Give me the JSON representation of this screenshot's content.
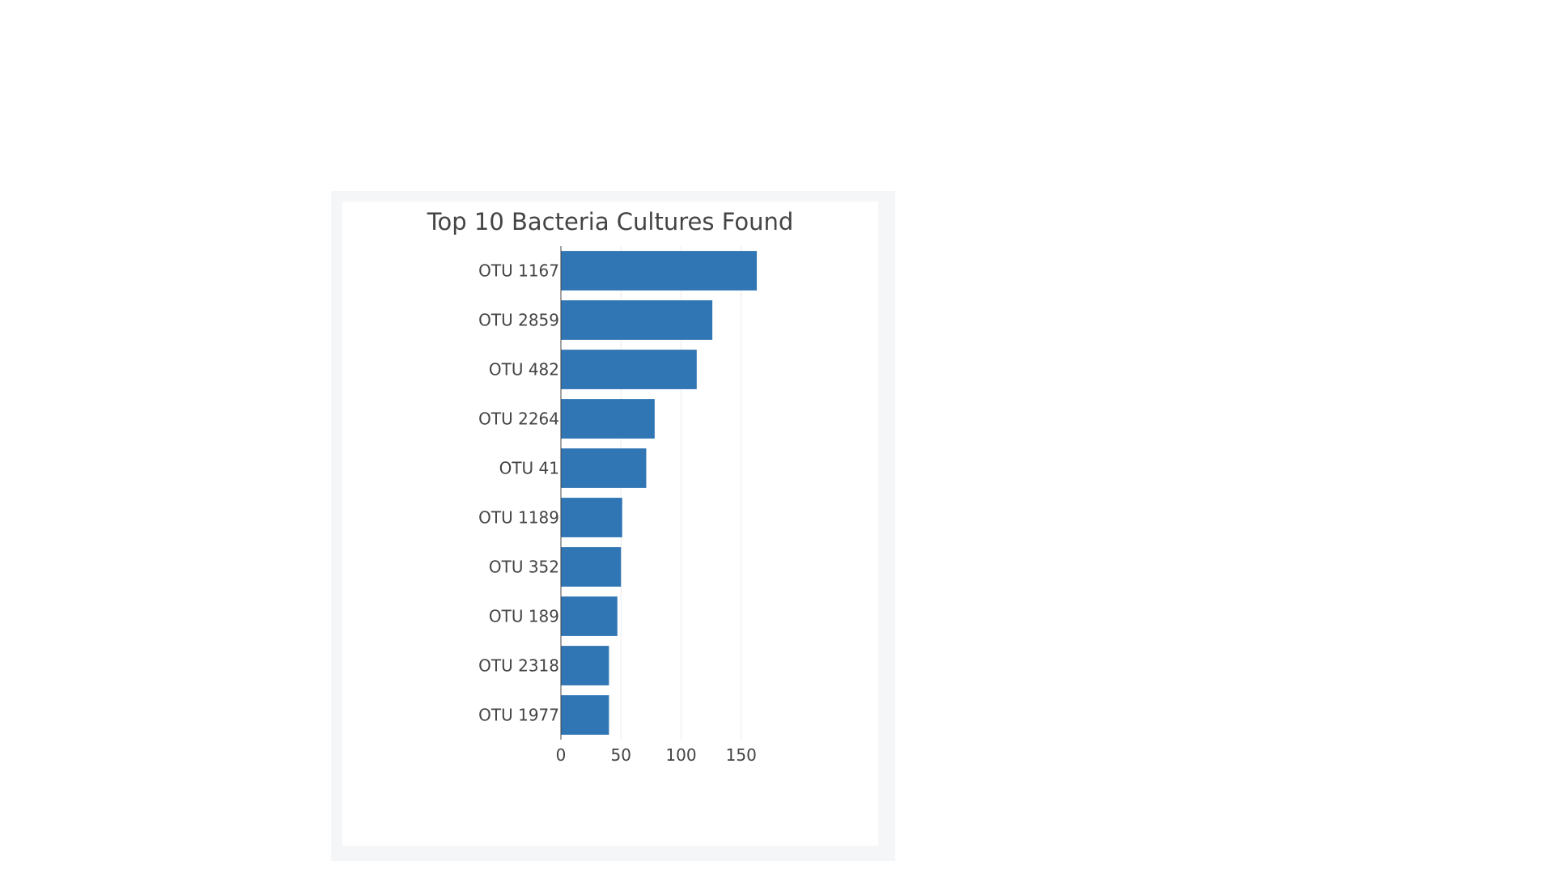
{
  "chart_data": {
    "type": "bar",
    "orientation": "horizontal",
    "title": "Top 10 Bacteria Cultures Found",
    "xlabel": "",
    "ylabel": "",
    "categories": [
      "OTU 1167",
      "OTU 2859",
      "OTU 482",
      "OTU 2264",
      "OTU 41",
      "OTU 1189",
      "OTU 352",
      "OTU 189",
      "OTU 2318",
      "OTU 1977"
    ],
    "values": [
      163,
      126,
      113,
      78,
      71,
      51,
      50,
      47,
      40,
      40
    ],
    "xlim": [
      0,
      166
    ],
    "xticks": [
      0,
      50,
      100,
      150
    ],
    "grid": true,
    "legend": "none",
    "colors": {
      "bar": "#3075b4",
      "grid": "#ececec",
      "axis": "#444444",
      "text": "#444444"
    }
  }
}
